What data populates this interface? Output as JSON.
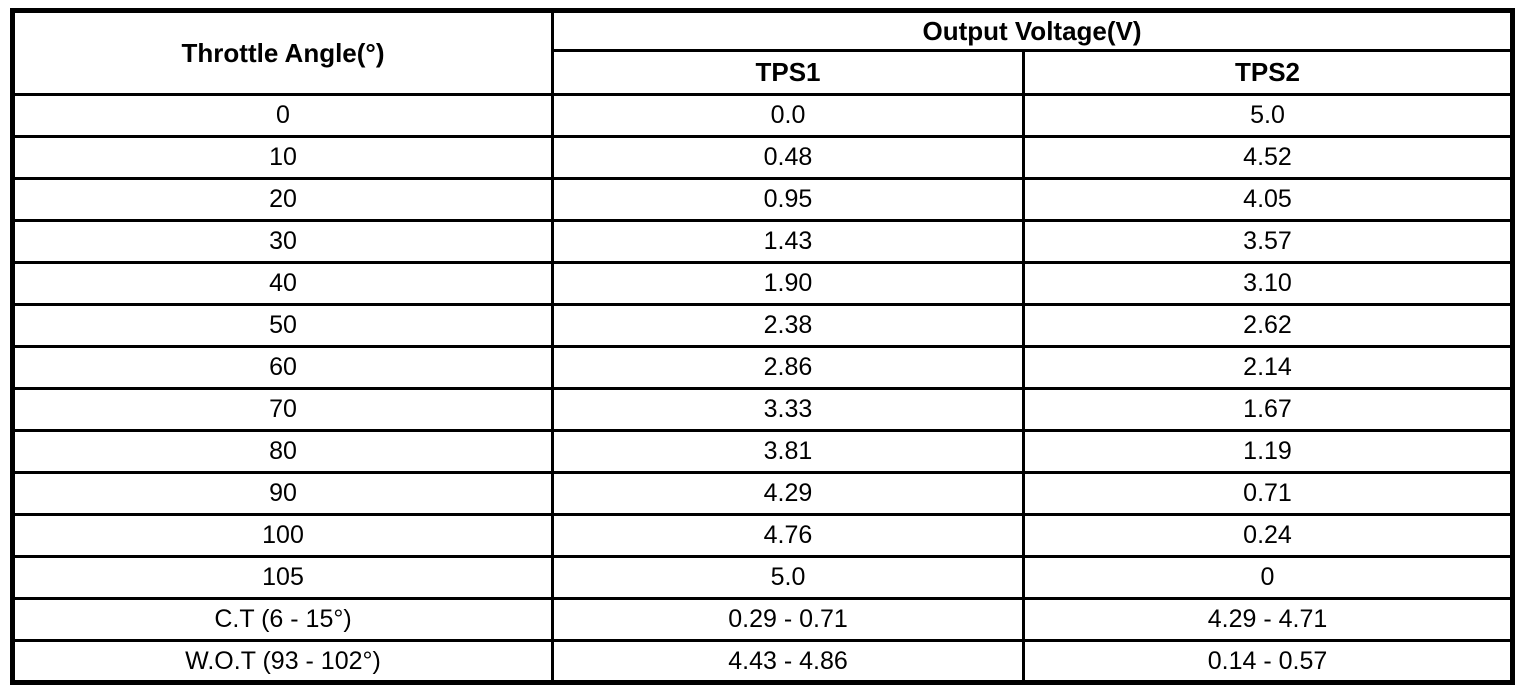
{
  "table": {
    "col1_header": "Throttle Angle(°)",
    "group_header": "Output Voltage(V)",
    "sub_headers": [
      "TPS1",
      "TPS2"
    ],
    "rows": [
      {
        "angle": "0",
        "tps1": "0.0",
        "tps2": "5.0"
      },
      {
        "angle": "10",
        "tps1": "0.48",
        "tps2": "4.52"
      },
      {
        "angle": "20",
        "tps1": "0.95",
        "tps2": "4.05"
      },
      {
        "angle": "30",
        "tps1": "1.43",
        "tps2": "3.57"
      },
      {
        "angle": "40",
        "tps1": "1.90",
        "tps2": "3.10"
      },
      {
        "angle": "50",
        "tps1": "2.38",
        "tps2": "2.62"
      },
      {
        "angle": "60",
        "tps1": "2.86",
        "tps2": "2.14"
      },
      {
        "angle": "70",
        "tps1": "3.33",
        "tps2": "1.67"
      },
      {
        "angle": "80",
        "tps1": "3.81",
        "tps2": "1.19"
      },
      {
        "angle": "90",
        "tps1": "4.29",
        "tps2": "0.71"
      },
      {
        "angle": "100",
        "tps1": "4.76",
        "tps2": "0.24"
      },
      {
        "angle": "105",
        "tps1": "5.0",
        "tps2": "0"
      },
      {
        "angle": "C.T (6 - 15°)",
        "tps1": "0.29 - 0.71",
        "tps2": "4.29 - 4.71"
      },
      {
        "angle": "W.O.T (93 - 102°)",
        "tps1": "4.43 - 4.86",
        "tps2": "0.14 - 0.57"
      }
    ],
    "colors": {
      "border": "#000000",
      "background": "#ffffff",
      "text": "#000000"
    }
  }
}
